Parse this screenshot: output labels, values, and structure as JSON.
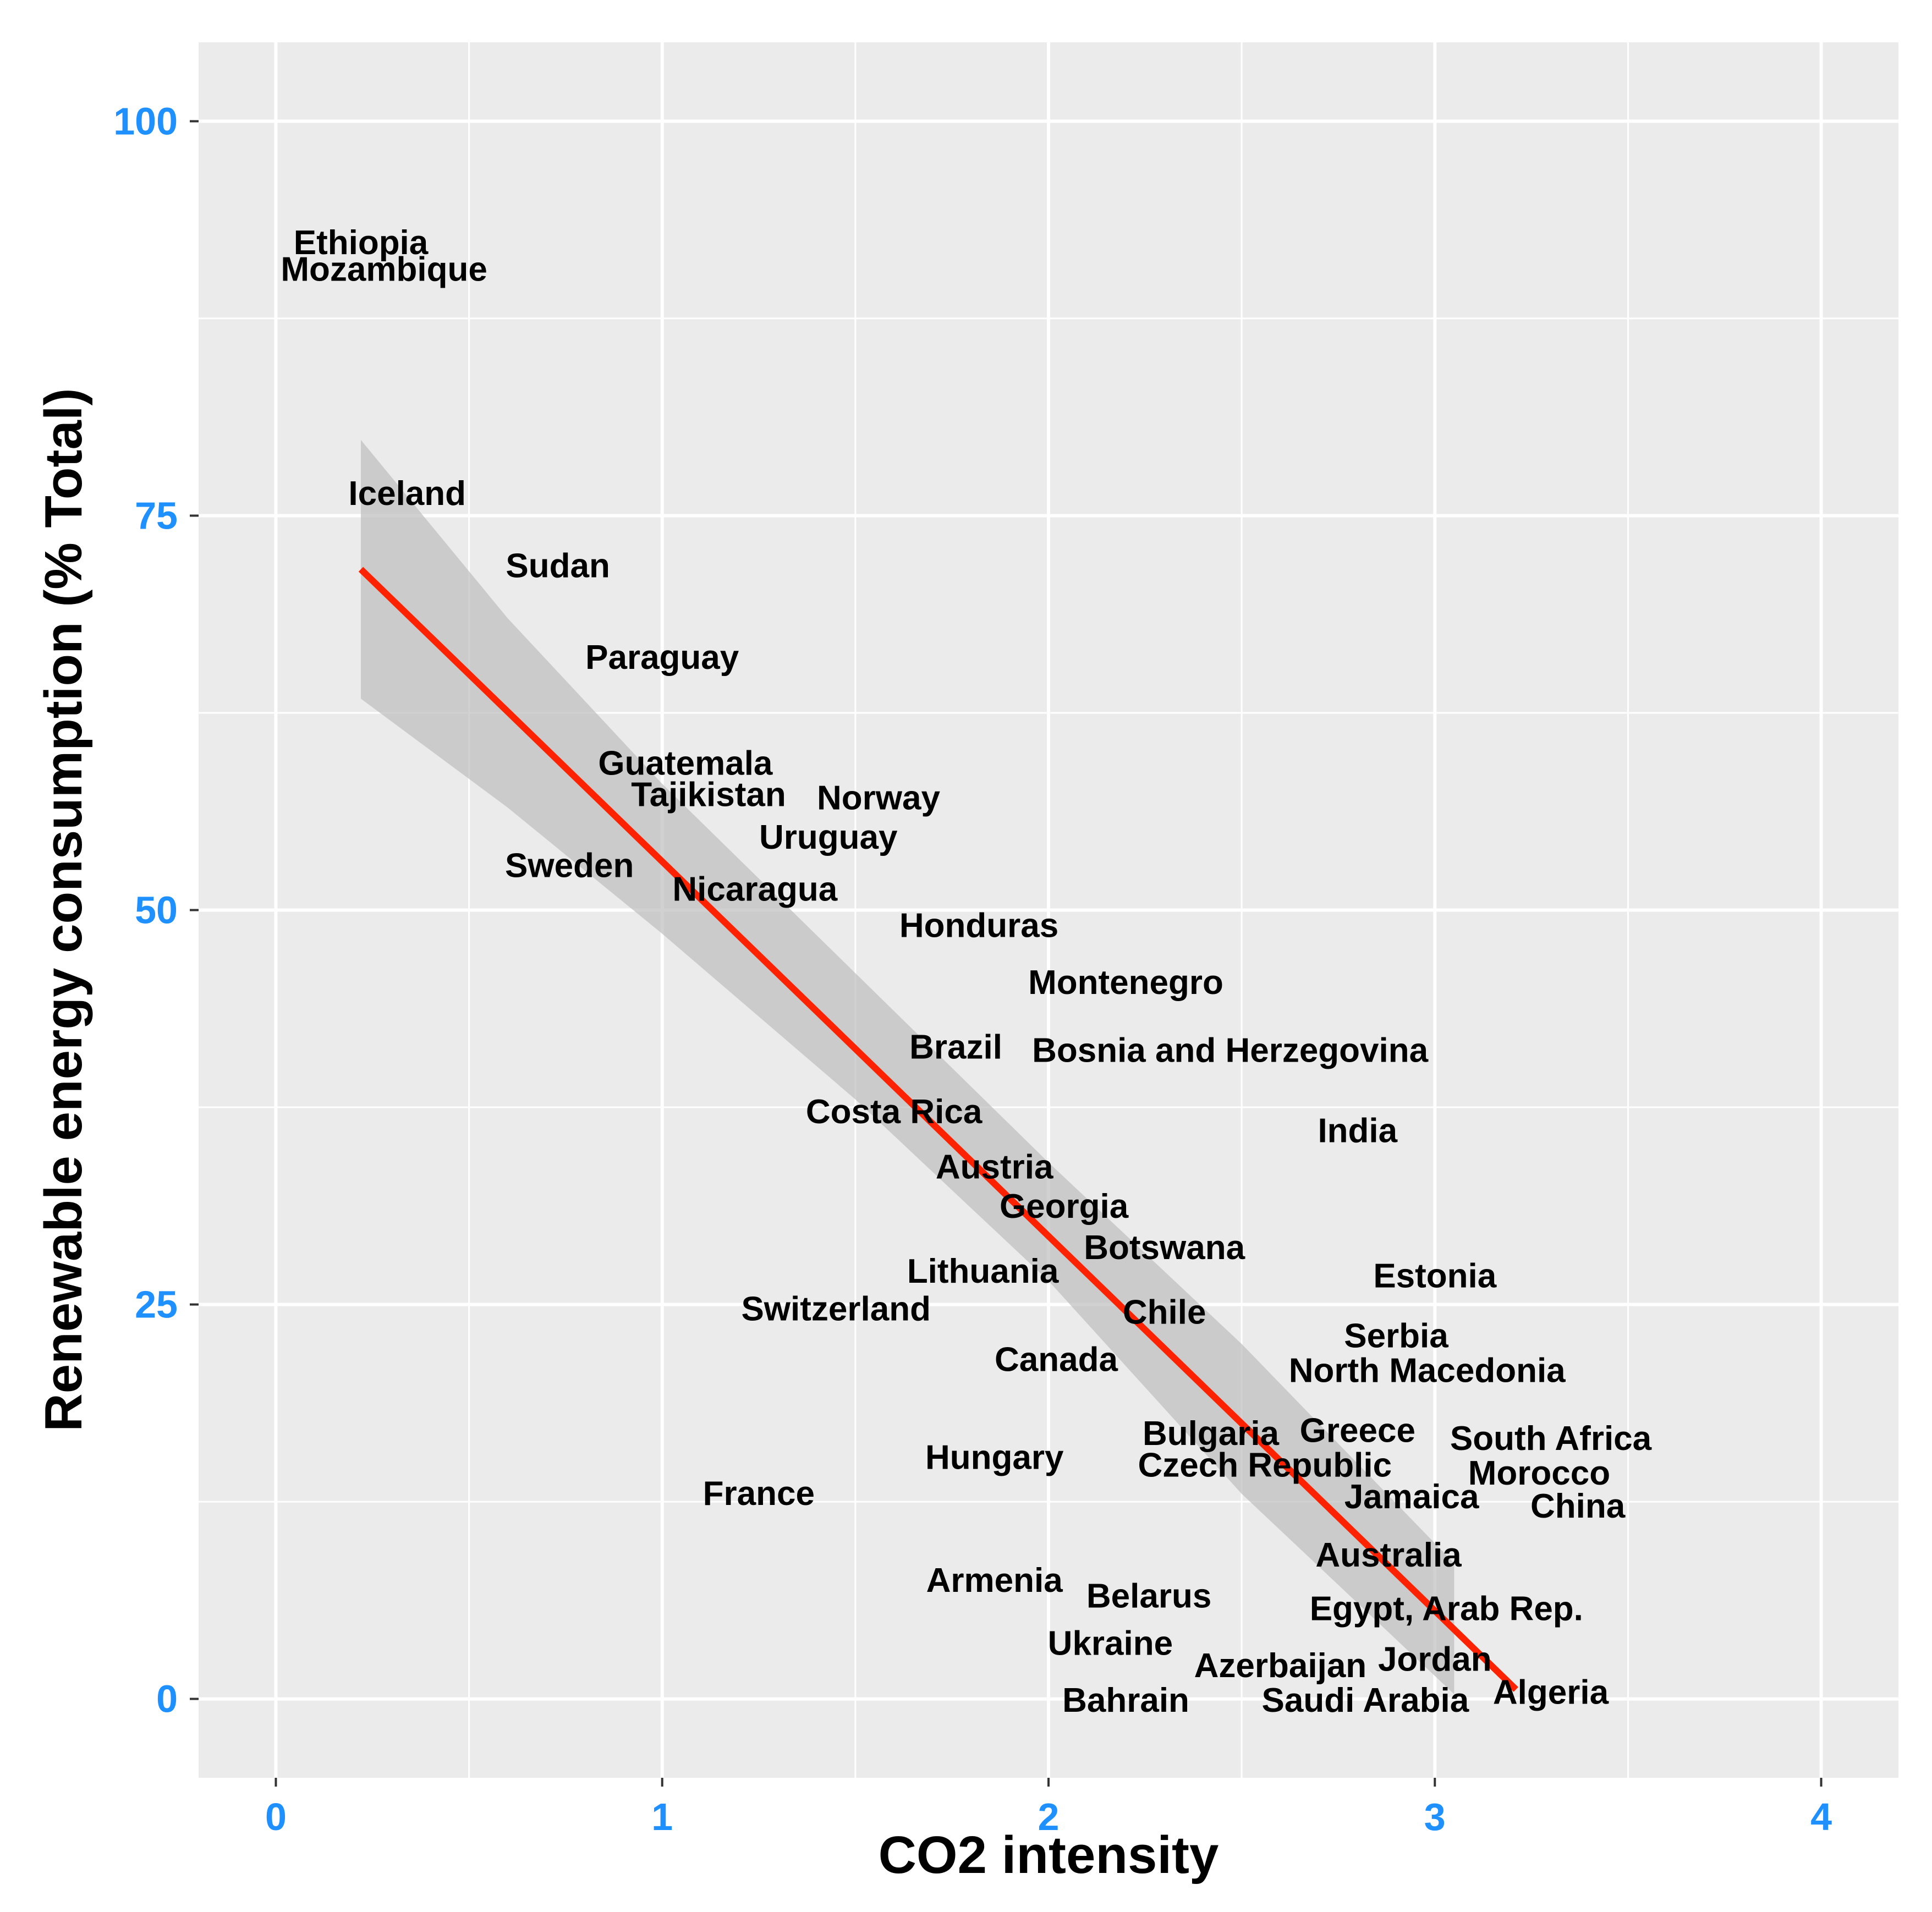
{
  "chart_data": {
    "type": "scatter",
    "title": "",
    "xlabel": "CO2 intensity",
    "ylabel": "Renewable energy consumption (% Total)",
    "xlim": [
      -0.2,
      4.2
    ],
    "ylim": [
      -5,
      105
    ],
    "x_ticks": [
      0,
      1,
      2,
      3,
      4
    ],
    "x_tick_labels": [
      "0",
      "1",
      "2",
      "3",
      "4"
    ],
    "y_ticks": [
      0,
      25,
      50,
      75,
      100
    ],
    "y_tick_labels": [
      "0",
      "25",
      "50",
      "75",
      "100"
    ],
    "grid": true,
    "legend": "none",
    "colors": {
      "panel": "#EBEBEB",
      "grid": "#FFFFFF",
      "tick_label": "#1E90FF",
      "fit_line": "#FF2200",
      "ribbon": "#BEBEBE",
      "text": "#000000"
    },
    "points": [
      {
        "label": "Ethiopia",
        "x": 0.22,
        "y": 92.3
      },
      {
        "label": "Mozambique",
        "x": 0.28,
        "y": 90.6
      },
      {
        "label": "Iceland",
        "x": 0.34,
        "y": 76.4
      },
      {
        "label": "Sudan",
        "x": 0.73,
        "y": 71.8
      },
      {
        "label": "Paraguay",
        "x": 1.0,
        "y": 66.0
      },
      {
        "label": "Guatemala",
        "x": 1.06,
        "y": 59.3
      },
      {
        "label": "Tajikistan",
        "x": 1.12,
        "y": 57.3
      },
      {
        "label": "Norway",
        "x": 1.56,
        "y": 57.1
      },
      {
        "label": "Uruguay",
        "x": 1.43,
        "y": 54.6
      },
      {
        "label": "Sweden",
        "x": 0.76,
        "y": 52.8
      },
      {
        "label": "Nicaragua",
        "x": 1.24,
        "y": 51.3
      },
      {
        "label": "Honduras",
        "x": 1.82,
        "y": 49.0
      },
      {
        "label": "Montenegro",
        "x": 2.2,
        "y": 45.4
      },
      {
        "label": "Brazil",
        "x": 1.76,
        "y": 41.3
      },
      {
        "label": "Bosnia and Herzegovina",
        "x": 2.47,
        "y": 41.1
      },
      {
        "label": "Costa Rica",
        "x": 1.6,
        "y": 37.2
      },
      {
        "label": "India",
        "x": 2.8,
        "y": 36.0
      },
      {
        "label": "Austria",
        "x": 1.86,
        "y": 33.7
      },
      {
        "label": "Georgia",
        "x": 2.04,
        "y": 31.2
      },
      {
        "label": "Botswana",
        "x": 2.3,
        "y": 28.6
      },
      {
        "label": "Lithuania",
        "x": 1.83,
        "y": 27.1
      },
      {
        "label": "Estonia",
        "x": 3.0,
        "y": 26.8
      },
      {
        "label": "Switzerland",
        "x": 1.45,
        "y": 24.7
      },
      {
        "label": "Chile",
        "x": 2.3,
        "y": 24.5
      },
      {
        "label": "Serbia",
        "x": 2.9,
        "y": 23.0
      },
      {
        "label": "Canada",
        "x": 2.02,
        "y": 21.5
      },
      {
        "label": "North Macedonia",
        "x": 2.98,
        "y": 20.8
      },
      {
        "label": "Bulgaria",
        "x": 2.42,
        "y": 16.8
      },
      {
        "label": "Greece",
        "x": 2.8,
        "y": 17.0
      },
      {
        "label": "South Africa",
        "x": 3.3,
        "y": 16.5
      },
      {
        "label": "Hungary",
        "x": 1.86,
        "y": 15.3
      },
      {
        "label": "Czech Republic",
        "x": 2.56,
        "y": 14.8
      },
      {
        "label": "Morocco",
        "x": 3.27,
        "y": 14.3
      },
      {
        "label": "France",
        "x": 1.25,
        "y": 13.0
      },
      {
        "label": "Jamaica",
        "x": 2.94,
        "y": 12.8
      },
      {
        "label": "China",
        "x": 3.37,
        "y": 12.2
      },
      {
        "label": "Australia",
        "x": 2.88,
        "y": 9.1
      },
      {
        "label": "Armenia",
        "x": 1.86,
        "y": 7.5
      },
      {
        "label": "Belarus",
        "x": 2.26,
        "y": 6.5
      },
      {
        "label": "Egypt, Arab Rep.",
        "x": 3.03,
        "y": 5.7
      },
      {
        "label": "Ukraine",
        "x": 2.16,
        "y": 3.5
      },
      {
        "label": "Jordan",
        "x": 3.0,
        "y": 2.5
      },
      {
        "label": "Azerbaijan",
        "x": 2.6,
        "y": 2.1
      },
      {
        "label": "Algeria",
        "x": 3.3,
        "y": 0.4
      },
      {
        "label": "Bahrain",
        "x": 2.2,
        "y": -0.1
      },
      {
        "label": "Saudi Arabia",
        "x": 2.82,
        "y": -0.1
      }
    ],
    "fit": {
      "method": "linear",
      "start": {
        "x": 0.22,
        "y": 71.6
      },
      "end": {
        "x": 3.21,
        "y": 0.6
      },
      "ribbon_upper": [
        [
          0.22,
          79.8
        ],
        [
          0.6,
          68.5
        ],
        [
          1.0,
          58.0
        ],
        [
          1.5,
          46.0
        ],
        [
          2.0,
          34.0
        ],
        [
          2.5,
          22.5
        ],
        [
          3.05,
          8.6
        ]
      ],
      "ribbon_lower": [
        [
          0.22,
          63.4
        ],
        [
          0.6,
          56.5
        ],
        [
          1.0,
          48.5
        ],
        [
          1.5,
          38.0
        ],
        [
          2.0,
          26.5
        ],
        [
          2.5,
          13.0
        ],
        [
          3.05,
          0.3
        ]
      ]
    }
  }
}
